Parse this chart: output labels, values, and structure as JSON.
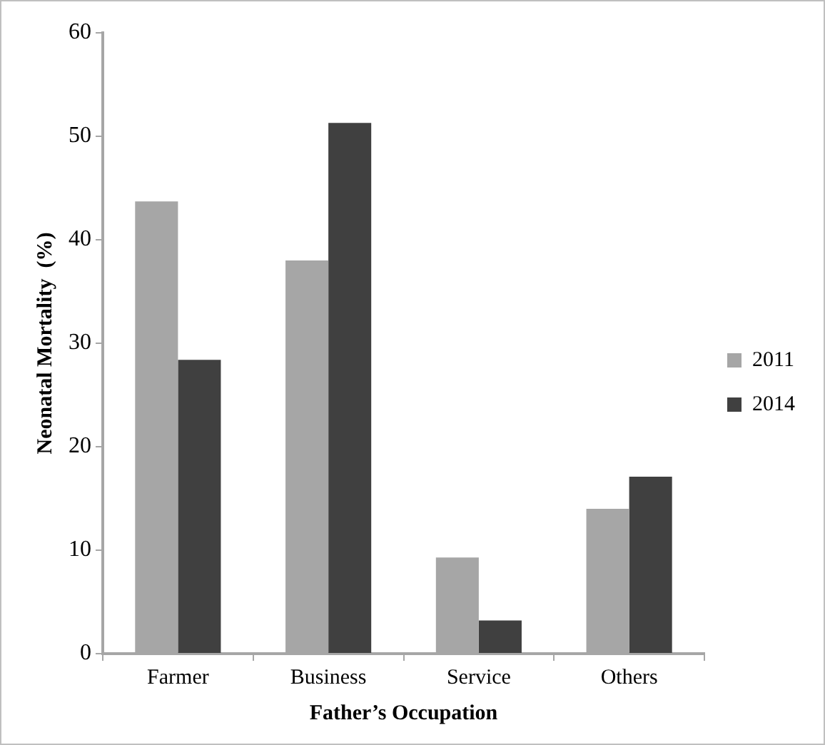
{
  "chart_data": {
    "type": "bar",
    "xlabel": "Father’s Occupation",
    "ylabel": "Neonatal Mortality  (%)",
    "categories": [
      "Farmer",
      "Business",
      "Service",
      "Others"
    ],
    "series": [
      {
        "name": "2011",
        "color": "#a6a6a6",
        "values": [
          43.7,
          38.0,
          9.3,
          14.0
        ]
      },
      {
        "name": "2014",
        "color": "#404040",
        "values": [
          28.4,
          51.3,
          3.2,
          17.1
        ]
      }
    ],
    "ylim": [
      0,
      60
    ],
    "yticks": [
      0,
      10,
      20,
      30,
      40,
      50,
      60
    ],
    "grid": false,
    "legend": "right"
  }
}
